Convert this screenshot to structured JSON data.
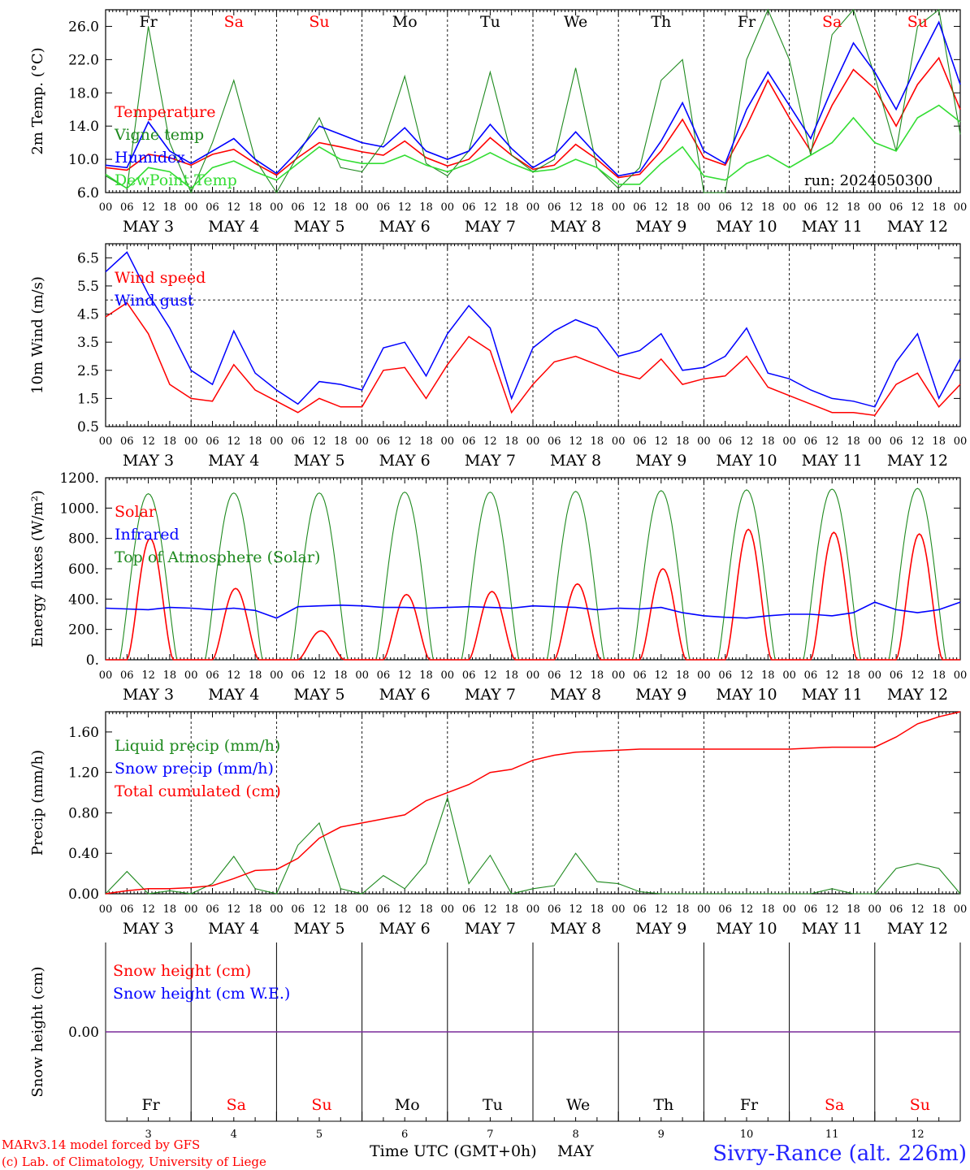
{
  "run_label": "run: 2024050300",
  "footer": {
    "model": "MARv3.14 model forced by GFS",
    "copyright": "(c) Lab. of Climatology, University of Liege",
    "xlabel": "Time UTC (GMT+0h)",
    "month": "MAY",
    "station": "Sivry-Rance (alt. 226m)"
  },
  "colors": {
    "red": "#ff0000",
    "green": "#1f8a1f",
    "blue": "#0000ff",
    "lightgreen": "#33dd33",
    "purple": "#7a2a9a"
  },
  "chart_data": [
    {
      "type": "line",
      "ylabel": "2m Temp. (°C)",
      "ylim": [
        6.0,
        28.0
      ],
      "yticks": [
        "6.0",
        "10.0",
        "14.0",
        "18.0",
        "22.0",
        "26.0"
      ],
      "day_names": [
        "Fr",
        "Sa",
        "Su",
        "Mo",
        "Tu",
        "We",
        "Th",
        "Fr",
        "Sa",
        "Su"
      ],
      "weekend_days": [
        1,
        2,
        8,
        9
      ],
      "hour_ticks": [
        "00",
        "06",
        "12",
        "18"
      ],
      "date_labels": [
        "MAY 3",
        "MAY 4",
        "MAY 5",
        "MAY 6",
        "MAY 7",
        "MAY 8",
        "MAY 9",
        "MAY 10",
        "MAY 11",
        "MAY 12"
      ],
      "x_hours": [
        0,
        6,
        12,
        18,
        24,
        30,
        36,
        42,
        48,
        54,
        60,
        66,
        72,
        78,
        84,
        90,
        96,
        102,
        108,
        114,
        120,
        126,
        132,
        138,
        144,
        150,
        156,
        162,
        168,
        174,
        180,
        186,
        192,
        198,
        204,
        210,
        216,
        222,
        228,
        234,
        240
      ],
      "series": [
        {
          "name": "Temperature",
          "color": "#ff0000",
          "values": [
            9.0,
            8.7,
            10.6,
            10.2,
            9.3,
            10.6,
            11.2,
            9.5,
            8.1,
            10.2,
            12.0,
            11.5,
            10.9,
            10.5,
            12.2,
            10.2,
            9.2,
            10.0,
            12.6,
            10.5,
            8.8,
            9.3,
            11.8,
            10.0,
            7.8,
            8.2,
            11.0,
            14.8,
            10.2,
            9.3,
            14.0,
            19.5,
            15.0,
            11.0,
            16.5,
            20.8,
            18.5,
            14.0,
            19.0,
            22.2,
            16.0
          ]
        },
        {
          "name": "Vigne temp",
          "color": "#1f8a1f",
          "values": [
            8.0,
            6.5,
            26.0,
            12.0,
            6.0,
            12.0,
            19.5,
            10.0,
            6.0,
            10.5,
            15.0,
            9.0,
            8.5,
            12.0,
            20.0,
            9.5,
            8.0,
            11.0,
            20.5,
            10.5,
            8.5,
            10.0,
            21.0,
            9.0,
            6.5,
            9.0,
            19.5,
            22.0,
            6.0,
            4.0,
            22.0,
            30.0,
            22.0,
            10.5,
            25.0,
            28.0,
            20.0,
            11.0,
            26.0,
            30.0,
            13.0
          ]
        },
        {
          "name": "Humidex",
          "color": "#0000ff",
          "values": [
            9.3,
            9.0,
            14.5,
            11.0,
            9.5,
            11.0,
            12.5,
            10.0,
            8.3,
            11.0,
            14.0,
            13.0,
            12.0,
            11.5,
            13.8,
            11.0,
            10.0,
            11.0,
            14.2,
            11.3,
            9.0,
            10.5,
            13.3,
            10.5,
            8.0,
            8.5,
            12.2,
            16.8,
            11.0,
            9.5,
            16.0,
            20.5,
            16.5,
            12.5,
            18.5,
            24.0,
            20.5,
            16.0,
            21.5,
            26.5,
            19.0
          ]
        },
        {
          "name": "DewPoint Temp",
          "color": "#33dd33",
          "values": [
            8.2,
            6.5,
            9.0,
            8.5,
            6.5,
            9.0,
            9.8,
            8.5,
            7.5,
            9.5,
            11.5,
            10.0,
            9.5,
            9.5,
            10.5,
            9.3,
            8.5,
            9.5,
            10.8,
            9.5,
            8.5,
            8.8,
            10.0,
            9.0,
            7.0,
            7.0,
            9.5,
            11.5,
            8.0,
            7.5,
            9.5,
            10.5,
            9.0,
            10.5,
            12.0,
            15.0,
            12.0,
            11.0,
            15.0,
            16.5,
            14.5
          ]
        }
      ]
    },
    {
      "type": "line",
      "ylabel": "10m Wind (m/s)",
      "ylim": [
        0.5,
        7.0
      ],
      "yticks": [
        "0.5",
        "1.5",
        "2.5",
        "3.5",
        "4.5",
        "5.5",
        "6.5"
      ],
      "hour_ticks": [
        "00",
        "06",
        "12",
        "18"
      ],
      "date_labels": [
        "MAY 3",
        "MAY 4",
        "MAY 5",
        "MAY 6",
        "MAY 7",
        "MAY 8",
        "MAY 9",
        "MAY 10",
        "MAY 11",
        "MAY 12"
      ],
      "reference_line": 5.0,
      "x_hours": [
        0,
        6,
        12,
        18,
        24,
        30,
        36,
        42,
        48,
        54,
        60,
        66,
        72,
        78,
        84,
        90,
        96,
        102,
        108,
        114,
        120,
        126,
        132,
        138,
        144,
        150,
        156,
        162,
        168,
        174,
        180,
        186,
        192,
        198,
        204,
        210,
        216,
        222,
        228,
        234,
        240
      ],
      "series": [
        {
          "name": "Wind speed",
          "color": "#ff0000",
          "values": [
            4.4,
            4.9,
            3.8,
            2.0,
            1.5,
            1.4,
            2.7,
            1.8,
            1.4,
            1.0,
            1.5,
            1.2,
            1.2,
            2.5,
            2.6,
            1.5,
            2.7,
            3.7,
            3.2,
            1.0,
            2.0,
            2.8,
            3.0,
            2.7,
            2.4,
            2.2,
            2.9,
            2.0,
            2.2,
            2.3,
            3.0,
            1.9,
            1.6,
            1.3,
            1.0,
            1.0,
            0.9,
            2.0,
            2.4,
            1.2,
            2.0
          ]
        },
        {
          "name": "Wind gust",
          "color": "#0000ff",
          "values": [
            6.0,
            6.7,
            5.2,
            4.0,
            2.5,
            2.0,
            3.9,
            2.4,
            1.8,
            1.3,
            2.1,
            2.0,
            1.8,
            3.3,
            3.5,
            2.3,
            3.8,
            4.8,
            4.0,
            1.5,
            3.3,
            3.9,
            4.3,
            4.0,
            3.0,
            3.2,
            3.8,
            2.5,
            2.6,
            3.0,
            4.0,
            2.4,
            2.2,
            1.8,
            1.5,
            1.4,
            1.2,
            2.8,
            3.8,
            1.5,
            2.9
          ]
        }
      ]
    },
    {
      "type": "line",
      "ylabel": "Energy fluxes (W/m²)",
      "ylim": [
        0,
        1200
      ],
      "yticks": [
        "0.",
        "200.",
        "400.",
        "600.",
        "800.",
        "1000.",
        "1200."
      ],
      "hour_ticks": [
        "00",
        "06",
        "12",
        "18"
      ],
      "date_labels": [
        "MAY 3",
        "MAY 4",
        "MAY 5",
        "MAY 6",
        "MAY 7",
        "MAY 8",
        "MAY 9",
        "MAY 10",
        "MAY 11",
        "MAY 12"
      ],
      "toa_peak": [
        1095,
        1100,
        1100,
        1105,
        1105,
        1110,
        1115,
        1120,
        1125,
        1130
      ],
      "solar_peak": [
        800,
        470,
        190,
        430,
        450,
        500,
        600,
        860,
        840,
        830
      ],
      "x_hours": [
        0,
        6,
        12,
        18,
        24,
        30,
        36,
        42,
        48,
        54,
        60,
        66,
        72,
        78,
        84,
        90,
        96,
        102,
        108,
        114,
        120,
        126,
        132,
        138,
        144,
        150,
        156,
        162,
        168,
        174,
        180,
        186,
        192,
        198,
        204,
        210,
        216,
        222,
        228,
        234,
        240
      ],
      "series": [
        {
          "name": "Solar",
          "color": "#ff0000"
        },
        {
          "name": "Infrared",
          "color": "#0000ff",
          "values": [
            340,
            335,
            330,
            345,
            340,
            330,
            340,
            325,
            275,
            350,
            355,
            360,
            355,
            345,
            345,
            340,
            345,
            350,
            345,
            340,
            355,
            350,
            345,
            330,
            340,
            335,
            345,
            310,
            290,
            280,
            275,
            290,
            300,
            300,
            290,
            310,
            380,
            330,
            310,
            330,
            380
          ]
        },
        {
          "name": "Top of Atmosphere (Solar)",
          "color": "#1f8a1f"
        }
      ]
    },
    {
      "type": "line",
      "ylabel": "Precip (mm/h)",
      "ylim": [
        0,
        1.8
      ],
      "yticks": [
        "0.00",
        "0.40",
        "0.80",
        "1.20",
        "1.60"
      ],
      "hour_ticks": [
        "00",
        "06",
        "12",
        "18"
      ],
      "date_labels": [
        "MAY 3",
        "MAY 4",
        "MAY 5",
        "MAY 6",
        "MAY 7",
        "MAY 8",
        "MAY 9",
        "MAY 10",
        "MAY 11",
        "MAY 12"
      ],
      "x_hours": [
        0,
        6,
        12,
        18,
        24,
        30,
        36,
        42,
        48,
        54,
        60,
        66,
        72,
        78,
        84,
        90,
        96,
        102,
        108,
        114,
        120,
        126,
        132,
        138,
        144,
        150,
        156,
        162,
        168,
        174,
        180,
        186,
        192,
        198,
        204,
        210,
        216,
        222,
        228,
        234,
        240
      ],
      "series": [
        {
          "name": "Liquid precip (mm/h)",
          "color": "#1f8a1f",
          "values": [
            0,
            0.22,
            0,
            0.03,
            0,
            0.1,
            0.37,
            0.05,
            0,
            0.48,
            0.7,
            0.05,
            0,
            0.18,
            0.05,
            0.3,
            0.95,
            0.1,
            0.38,
            0,
            0.05,
            0.08,
            0.4,
            0.12,
            0.1,
            0.02,
            0,
            0,
            0,
            0,
            0,
            0,
            0,
            0,
            0.05,
            0,
            0,
            0.25,
            0.3,
            0.25,
            0
          ]
        },
        {
          "name": "Snow precip (mm/h)",
          "color": "#0000ff",
          "values": []
        },
        {
          "name": "Total cumulated (cm)",
          "color": "#ff0000",
          "values": [
            0,
            0.03,
            0.05,
            0.05,
            0.06,
            0.08,
            0.15,
            0.23,
            0.24,
            0.35,
            0.55,
            0.66,
            0.7,
            0.74,
            0.78,
            0.92,
            1.0,
            1.08,
            1.2,
            1.23,
            1.32,
            1.37,
            1.4,
            1.41,
            1.42,
            1.43,
            1.43,
            1.43,
            1.43,
            1.43,
            1.43,
            1.43,
            1.43,
            1.44,
            1.45,
            1.45,
            1.45,
            1.55,
            1.68,
            1.75,
            1.8
          ]
        }
      ]
    },
    {
      "type": "line",
      "ylabel": "Snow height (cm)",
      "ylim": [
        -1,
        1
      ],
      "yticks": [
        "0.00"
      ],
      "day_names": [
        "Fr",
        "Sa",
        "Su",
        "Mo",
        "Tu",
        "We",
        "Th",
        "Fr",
        "Sa",
        "Su"
      ],
      "weekend_days": [
        1,
        2,
        8,
        9
      ],
      "day_numbers": [
        "3",
        "4",
        "5",
        "6",
        "7",
        "8",
        "9",
        "10",
        "11",
        "12"
      ],
      "series": [
        {
          "name": "Snow height (cm)",
          "color": "#ff0000"
        },
        {
          "name": "Snow height (cm W.E.)",
          "color": "#0000ff"
        }
      ]
    }
  ]
}
